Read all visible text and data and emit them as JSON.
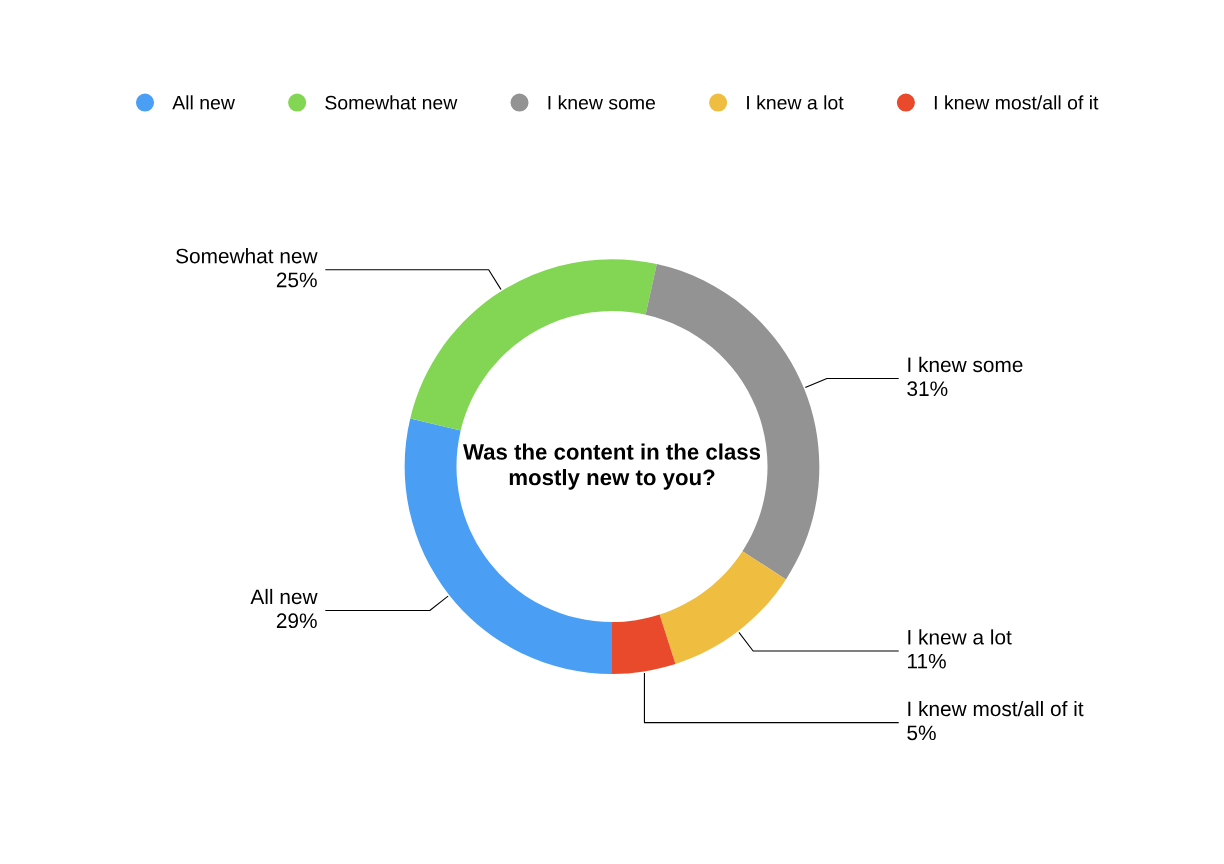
{
  "chart_data": {
    "type": "donut",
    "title": "Was the content in the class mostly new to you?",
    "categories": [
      "All new",
      "Somewhat new",
      "I knew some",
      "I knew a lot",
      "I knew most/all of it"
    ],
    "values": [
      29,
      25,
      31,
      11,
      5
    ],
    "value_labels": [
      "29%",
      "25%",
      "31%",
      "11%",
      "5%"
    ],
    "colors": [
      "#4a9ff5",
      "#82d653",
      "#939393",
      "#efbd40",
      "#e84a2b"
    ],
    "legend": "top"
  }
}
